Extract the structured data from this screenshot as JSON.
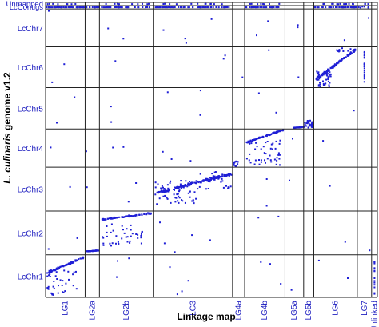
{
  "chart_data": {
    "type": "scatter",
    "subtype": "oxford-grid dot plot",
    "xlabel": "Linkage map",
    "ylabel": "L. culinaris genome v1.2",
    "columns": [
      "LG1",
      "LG2a",
      "LG2b",
      "LG3",
      "LG4a",
      "LG4b",
      "LG5a",
      "LG5b",
      "LG6",
      "LG7",
      "Unlinked"
    ],
    "rows": [
      "Unmapped",
      "LcContigs",
      "LcChr7",
      "LcChr6",
      "LcChr5",
      "LcChr4",
      "LcChr3",
      "LcChr2",
      "LcChr1"
    ],
    "column_relative_widths": [
      0.199,
      0.072,
      0.271,
      0.399,
      0.061,
      0.203,
      0.094,
      0.051,
      0.219,
      0.072,
      0.029
    ],
    "row_relative_heights": [
      0.027,
      0.027,
      0.317,
      0.342,
      0.346,
      0.32,
      0.367,
      0.367,
      0.356
    ],
    "grid": true,
    "point_color": "#1f1fd6",
    "label_color": "#2020c0",
    "diagonal_blocks": [
      {
        "column": "LG1",
        "row": "LcChr1",
        "trend": "rising dense band with scattered points below"
      },
      {
        "column": "LG2a",
        "row": "LcChr2",
        "trend": "dense band near bottom"
      },
      {
        "column": "LG2b",
        "row": "LcChr2",
        "trend": "rising dense band with scattered points below"
      },
      {
        "column": "LG3",
        "row": "LcChr3",
        "trend": "rising dense band with cluster at left"
      },
      {
        "column": "LG4a",
        "row": "LcChr4",
        "trend": "small cluster at bottom"
      },
      {
        "column": "LG4b",
        "row": "LcChr4",
        "trend": "rising dense band with scattered points below"
      },
      {
        "column": "LG5a",
        "row": "LcChr5",
        "trend": "short dense band near bottom-right"
      },
      {
        "column": "LG5b",
        "row": "LcChr5",
        "trend": "dense cluster near bottom"
      },
      {
        "column": "LG6",
        "row": "LcChr6",
        "trend": "rising dense band"
      },
      {
        "column": "LG7",
        "row": "LcChr6",
        "trend": "vertical line"
      },
      {
        "column": "LG7",
        "row": "LcContigs",
        "trend": "scattered points"
      }
    ]
  }
}
